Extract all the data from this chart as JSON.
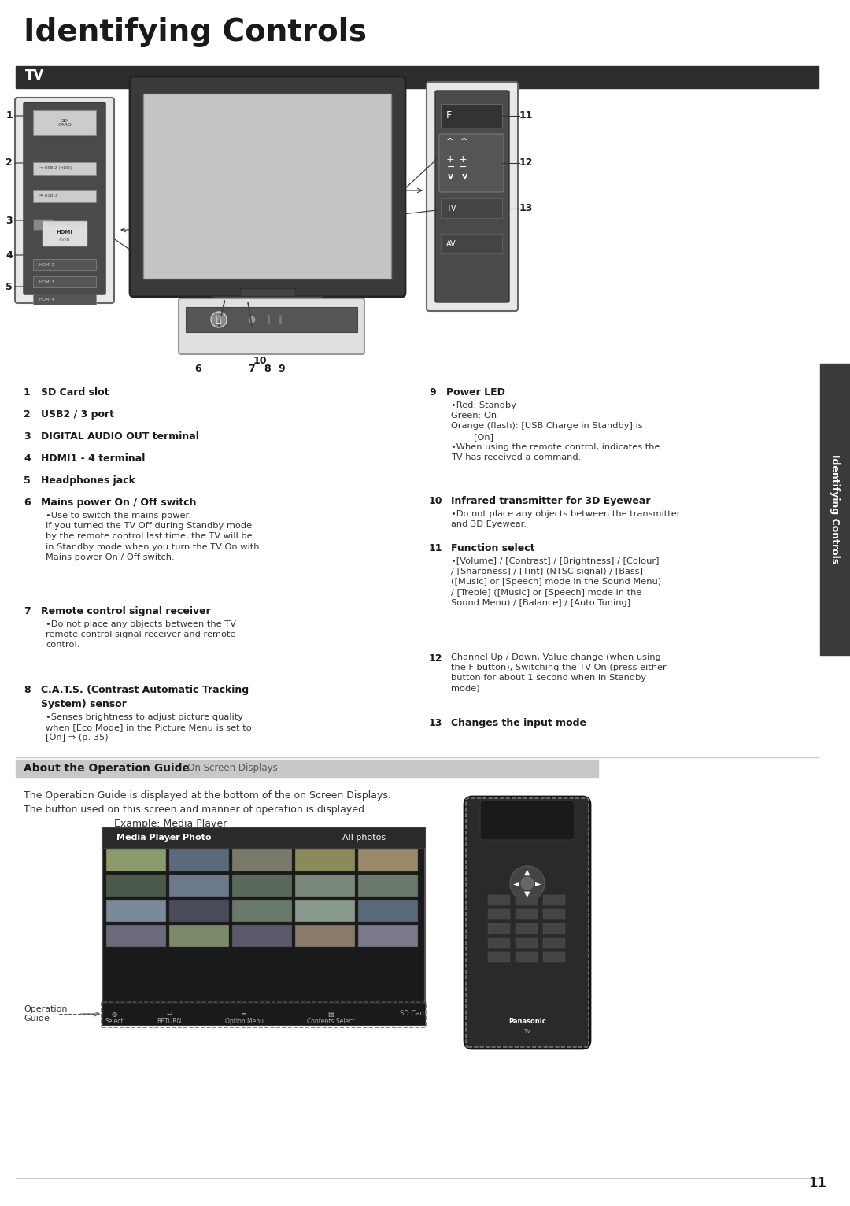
{
  "title": "Identifying Controls",
  "section_tv": "TV",
  "section_about": "About the Operation Guide",
  "section_about_sub": "- On Screen Displays",
  "about_text1": "The Operation Guide is displayed at the bottom of the on Screen Displays.",
  "about_text2": "The button used on this screen and manner of operation is displayed.",
  "example_label": "Example: Media Player",
  "page_number": "11",
  "sidebar_text": "Identifying Controls",
  "left_items": [
    {
      "num": "1",
      "bold": "SD Card slot",
      "rest": ""
    },
    {
      "num": "2",
      "bold": "USB2 / 3 port",
      "rest": ""
    },
    {
      "num": "3",
      "bold": "DIGITAL AUDIO OUT terminal",
      "rest": ""
    },
    {
      "num": "4",
      "bold": "HDMI1 - 4 terminal",
      "rest": ""
    },
    {
      "num": "5",
      "bold": "Headphones jack",
      "rest": ""
    },
    {
      "num": "6",
      "bold": "Mains power On / Off switch",
      "rest": "•Use to switch the mains power.\nIf you turned the TV Off during Standby mode\nby the remote control last time, the TV will be\nin Standby mode when you turn the TV On with\nMains power On / Off switch."
    },
    {
      "num": "7",
      "bold": "Remote control signal receiver",
      "rest": "•Do not place any objects between the TV\nremote control signal receiver and remote\ncontrol."
    },
    {
      "num": "8",
      "bold": "C.A.T.S. (Contrast Automatic Tracking\nSystem) sensor",
      "rest": "•Senses brightness to adjust picture quality\nwhen [Eco Mode] in the Picture Menu is set to\n[On] ⇒ (p. 35)"
    }
  ],
  "right_items": [
    {
      "num": "9",
      "bold": "Power LED",
      "rest": "•Red: Standby\nGreen: On\nOrange (flash): [USB Charge in Standby] is\n        [On]\n•When using the remote control, indicates the\nTV has received a command."
    },
    {
      "num": "10",
      "bold": "Infrared transmitter for 3D Eyewear",
      "rest": "•Do not place any objects between the transmitter\nand 3D Eyewear."
    },
    {
      "num": "11",
      "bold": "Function select",
      "rest": "•[Volume] / [Contrast] / [Brightness] / [Colour]\n/ [Sharpness] / [Tint] (NTSC signal) / [Bass]\n([Music] or [Speech] mode in the Sound Menu)\n/ [Treble] ([Music] or [Speech] mode in the\nSound Menu) / [Balance] / [Auto Tuning]"
    },
    {
      "num": "12",
      "bold": "",
      "rest": "Channel Up / Down, Value change (when using\nthe F button), Switching the TV On (press either\nbutton for about 1 second when in Standby\nmode)"
    },
    {
      "num": "13",
      "bold": "Changes the input mode",
      "rest": ""
    }
  ],
  "bg_color": "#ffffff",
  "title_color": "#1a1a1a",
  "tv_bar_color": "#2d2d2d",
  "tv_bar_text_color": "#ffffff",
  "about_bar_color": "#c8c8c8",
  "about_bar_text_color": "#1a1a1a",
  "sidebar_color": "#3a3a3a",
  "sidebar_text_color": "#ffffff",
  "text_color": "#1a1a1a",
  "body_text_color": "#333333"
}
